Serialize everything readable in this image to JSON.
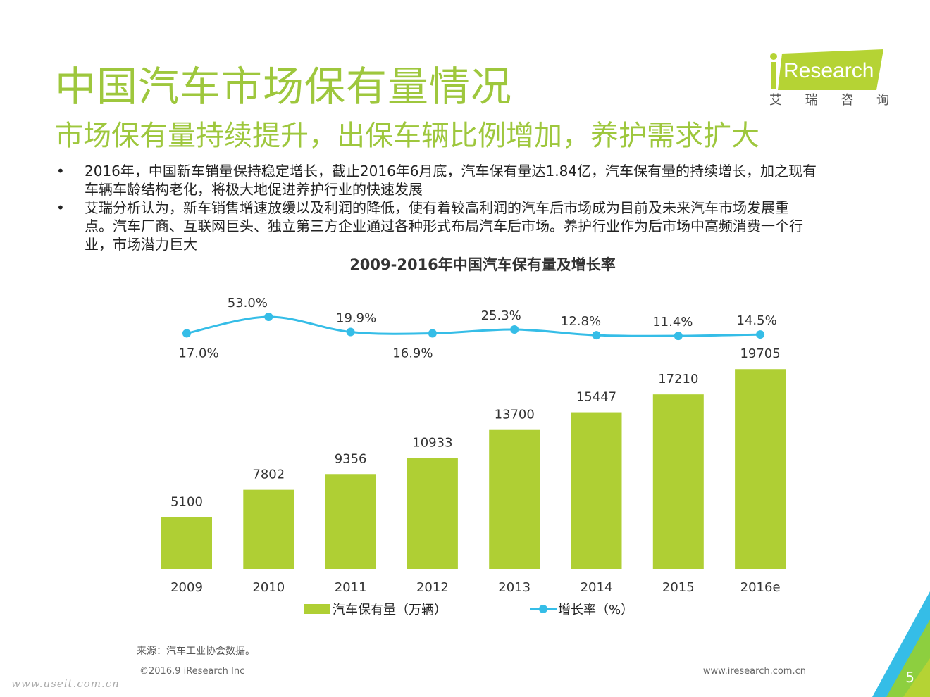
{
  "header": {
    "title": "中国汽车市场保有量情况",
    "subtitle": "市场保有量持续提升，出保车辆比例增加，养护需求扩大",
    "logo_text": "Research",
    "logo_cn": [
      "艾",
      "瑞",
      "咨",
      "询"
    ]
  },
  "bullets": [
    {
      "marker": "•",
      "lines": [
        "2016年，中国新车销量保持稳定增长，截止2016年6月底，汽车保有量达1.84亿，汽车保有量的持续增长，加之现有",
        "车辆车龄结构老化，将极大地促进养护行业的快速发展"
      ]
    },
    {
      "marker": "•",
      "lines": [
        "艾瑞分析认为，新车销售增速放缓以及利润的降低，使有着较高利润的汽车后市场成为目前及未来汽车市场发展重",
        "点。汽车厂商、互联网巨头、独立第三方企业通过各种形式布局汽车后市场。养护行业作为后市场中高频消费一个行",
        "业，市场潜力巨大"
      ]
    }
  ],
  "colors": {
    "title": "#9ec73d",
    "bar": "#afcf34",
    "line": "#35bde7"
  },
  "chart_data": {
    "type": "bar",
    "title": "2009-2016年中国汽车保有量及增长率",
    "categories": [
      "2009",
      "2010",
      "2011",
      "2012",
      "2013",
      "2014",
      "2015",
      "2016e"
    ],
    "series": [
      {
        "name": "汽车保有量（万辆）",
        "type": "bar",
        "values": [
          5100,
          7802,
          9356,
          10933,
          13700,
          15447,
          17210,
          19705
        ]
      },
      {
        "name": "增长率（%）",
        "type": "line",
        "values": [
          17.0,
          53.0,
          19.9,
          16.9,
          25.3,
          12.8,
          11.4,
          14.5
        ],
        "labels": [
          "17.0%",
          "53.0%",
          "19.9%",
          "16.9%",
          "25.3%",
          "12.8%",
          "11.4%",
          "14.5%"
        ],
        "label_side": [
          "below",
          "above",
          "above",
          "below",
          "above",
          "above",
          "above",
          "above"
        ]
      }
    ],
    "xlabel": "",
    "ylabel": "",
    "grid": false,
    "legend": "bottom"
  },
  "footer": {
    "source": "来源：汽车工业协会数据。",
    "copyright": "©2016.9 iResearch Inc",
    "site": "www.iresearch.com.cn",
    "watermark": "www.useit.com.cn",
    "page": "5"
  }
}
